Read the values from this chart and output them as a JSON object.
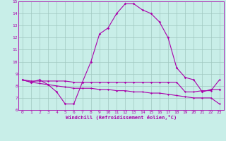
{
  "xlabel": "Windchill (Refroidissement éolien,°C)",
  "ylabel": "",
  "bg_color": "#c8eee8",
  "grid_color": "#a0c8c0",
  "line_color": "#aa00aa",
  "xlim": [
    -0.5,
    23.5
  ],
  "ylim": [
    6,
    15
  ],
  "yticks": [
    6,
    7,
    8,
    9,
    10,
    11,
    12,
    13,
    14,
    15
  ],
  "xticks": [
    0,
    1,
    2,
    3,
    4,
    5,
    6,
    7,
    8,
    9,
    10,
    11,
    12,
    13,
    14,
    15,
    16,
    17,
    18,
    19,
    20,
    21,
    22,
    23
  ],
  "curve1_x": [
    0,
    1,
    2,
    3,
    4,
    5,
    6,
    7,
    8,
    9,
    10,
    11,
    12,
    13,
    14,
    15,
    16,
    17,
    18,
    19,
    20,
    21,
    22,
    23
  ],
  "curve1_y": [
    8.5,
    8.3,
    8.5,
    8.1,
    7.5,
    6.5,
    6.5,
    8.3,
    10.0,
    12.3,
    12.8,
    14.0,
    14.8,
    14.8,
    14.3,
    14.0,
    13.3,
    12.0,
    9.5,
    8.7,
    8.5,
    7.5,
    7.7,
    7.7
  ],
  "curve2_x": [
    0,
    1,
    2,
    3,
    4,
    5,
    6,
    7,
    8,
    9,
    10,
    11,
    12,
    13,
    14,
    15,
    16,
    17,
    18,
    19,
    20,
    21,
    22,
    23
  ],
  "curve2_y": [
    8.5,
    8.4,
    8.4,
    8.4,
    8.4,
    8.4,
    8.3,
    8.3,
    8.3,
    8.3,
    8.3,
    8.3,
    8.3,
    8.3,
    8.3,
    8.3,
    8.3,
    8.3,
    8.3,
    7.5,
    7.5,
    7.6,
    7.6,
    8.5
  ],
  "curve3_x": [
    0,
    1,
    2,
    3,
    4,
    5,
    6,
    7,
    8,
    9,
    10,
    11,
    12,
    13,
    14,
    15,
    16,
    17,
    18,
    19,
    20,
    21,
    22,
    23
  ],
  "curve3_y": [
    8.5,
    8.3,
    8.2,
    8.1,
    8.0,
    7.9,
    7.8,
    7.8,
    7.8,
    7.7,
    7.7,
    7.6,
    7.6,
    7.5,
    7.5,
    7.4,
    7.4,
    7.3,
    7.2,
    7.1,
    7.0,
    7.0,
    7.0,
    6.5
  ],
  "tick_fontsize": 4.5,
  "xlabel_fontsize": 5.0
}
